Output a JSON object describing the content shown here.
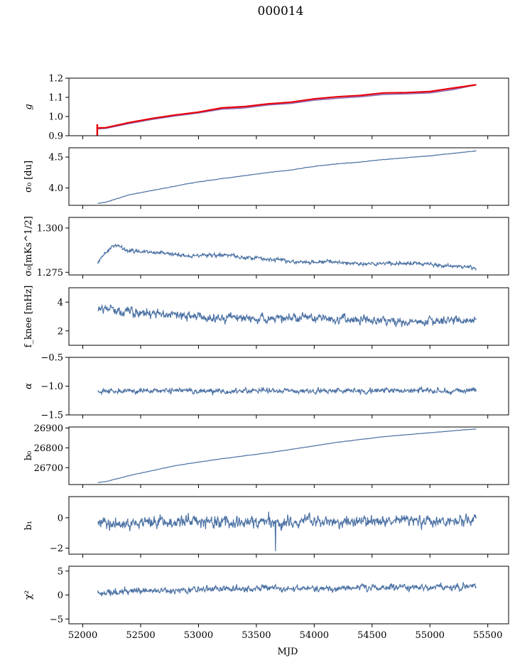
{
  "figure": {
    "title": "000014",
    "xlabel": "MJD"
  },
  "colors": {
    "series": "#4c72a4",
    "g_red": "#e8000b",
    "g_purple": "#8c6bb1",
    "axis": "#000000"
  },
  "chart_data": [
    {
      "type": "line",
      "key": "g",
      "ylabel": "g",
      "xlim": [
        51880,
        55680
      ],
      "ylim": [
        0.9,
        1.2
      ],
      "yticks": [
        0.9,
        1.0,
        1.1,
        1.2
      ],
      "ytick_labels": [
        "0.9",
        "1.0",
        "1.1",
        "1.2"
      ],
      "series": [
        {
          "color": "g_purple",
          "x": [
            52120,
            52200,
            52400,
            52600,
            52800,
            53000,
            53200,
            53400,
            53600,
            53800,
            54000,
            54200,
            54400,
            54600,
            54800,
            55000,
            55200,
            55400
          ],
          "y": [
            0.935,
            0.938,
            0.963,
            0.985,
            1.003,
            1.018,
            1.038,
            1.045,
            1.06,
            1.068,
            1.085,
            1.095,
            1.103,
            1.115,
            1.118,
            1.123,
            1.14,
            1.165
          ]
        },
        {
          "color": "g_red",
          "x": [
            52120,
            52200,
            52400,
            52600,
            52800,
            53000,
            53200,
            53400,
            53600,
            53800,
            54000,
            54200,
            54400,
            54600,
            54800,
            55000,
            55200,
            55400
          ],
          "y": [
            0.94,
            0.942,
            0.968,
            0.99,
            1.008,
            1.023,
            1.045,
            1.052,
            1.066,
            1.075,
            1.092,
            1.103,
            1.11,
            1.123,
            1.125,
            1.13,
            1.148,
            1.165
          ],
          "spike": {
            "x": 52125,
            "y0": 0.9,
            "y1": 0.96
          }
        }
      ]
    },
    {
      "type": "line",
      "key": "sigma0_du",
      "ylabel": "σ₀ [du]",
      "xlim": [
        51880,
        55680
      ],
      "ylim": [
        3.72,
        4.65
      ],
      "yticks": [
        4.0,
        4.5
      ],
      "ytick_labels": [
        "4.0",
        "4.5"
      ],
      "series": [
        {
          "color": "series",
          "x": [
            52130,
            52200,
            52300,
            52400,
            52600,
            52800,
            53000,
            53200,
            53400,
            53600,
            53800,
            54000,
            54200,
            54400,
            54600,
            54800,
            55000,
            55200,
            55400
          ],
          "y": [
            3.75,
            3.77,
            3.83,
            3.89,
            3.96,
            4.03,
            4.1,
            4.15,
            4.2,
            4.25,
            4.29,
            4.35,
            4.39,
            4.42,
            4.46,
            4.49,
            4.52,
            4.56,
            4.6
          ]
        }
      ],
      "noise": 0.004
    },
    {
      "type": "line",
      "key": "sigma0_mks",
      "ylabel": "σ₀[mKs^1/2]",
      "xlim": [
        51880,
        55680
      ],
      "ylim": [
        1.2735,
        1.306
      ],
      "yticks": [
        1.275,
        1.3
      ],
      "ytick_labels": [
        "1.275",
        "1.300"
      ],
      "series": [
        {
          "color": "series",
          "x": [
            52130,
            52180,
            52250,
            52300,
            52400,
            52500,
            52700,
            52900,
            53100,
            53300,
            53500,
            53700,
            53900,
            54100,
            54300,
            54500,
            54700,
            54900,
            55100,
            55300,
            55400
          ],
          "y": [
            1.28,
            1.285,
            1.289,
            1.29,
            1.287,
            1.287,
            1.286,
            1.284,
            1.285,
            1.284,
            1.283,
            1.282,
            1.281,
            1.281,
            1.28,
            1.28,
            1.28,
            1.28,
            1.279,
            1.278,
            1.277
          ]
        }
      ],
      "noise": 0.0012
    },
    {
      "type": "line",
      "key": "fknee",
      "ylabel": "f_knee [mHz]",
      "xlim": [
        51880,
        55680
      ],
      "ylim": [
        1.0,
        5.0
      ],
      "yticks": [
        2,
        4
      ],
      "ytick_labels": [
        "2",
        "4"
      ],
      "series": [
        {
          "color": "series",
          "x": [
            52130,
            52300,
            52600,
            53000,
            53400,
            53800,
            54200,
            54600,
            55000,
            55400
          ],
          "y": [
            3.6,
            3.4,
            3.2,
            3.0,
            2.9,
            2.9,
            2.8,
            2.75,
            2.7,
            2.7
          ]
        }
      ],
      "noise": 0.35
    },
    {
      "type": "line",
      "key": "alpha",
      "ylabel": "α",
      "xlim": [
        51880,
        55680
      ],
      "ylim": [
        -1.5,
        -0.5
      ],
      "yticks": [
        -1.5,
        -1.0,
        -0.5
      ],
      "ytick_labels": [
        "−1.5",
        "−1.0",
        "−0.5"
      ],
      "series": [
        {
          "color": "series",
          "x": [
            52130,
            55400
          ],
          "y": [
            -1.08,
            -1.08
          ]
        }
      ],
      "noise": 0.05
    },
    {
      "type": "line",
      "key": "b0",
      "ylabel": "b₀",
      "xlim": [
        51880,
        55680
      ],
      "ylim": [
        26615,
        26905
      ],
      "yticks": [
        26700,
        26800,
        26900
      ],
      "ytick_labels": [
        "26700",
        "26800",
        "26900"
      ],
      "series": [
        {
          "color": "series",
          "x": [
            52130,
            52200,
            52300,
            52400,
            52600,
            52800,
            53000,
            53200,
            53400,
            53600,
            53800,
            54000,
            54200,
            54400,
            54600,
            54800,
            55000,
            55200,
            55400
          ],
          "y": [
            26625,
            26630,
            26645,
            26660,
            26685,
            26710,
            26728,
            26745,
            26760,
            26775,
            26792,
            26810,
            26828,
            26842,
            26856,
            26866,
            26876,
            26886,
            26895
          ]
        }
      ],
      "noise": 0.8
    },
    {
      "type": "line",
      "key": "b1",
      "ylabel": "b₁",
      "xlim": [
        51880,
        55680
      ],
      "ylim": [
        -2.4,
        1.4
      ],
      "yticks": [
        -2,
        0
      ],
      "ytick_labels": [
        "−2",
        "0"
      ],
      "series": [
        {
          "color": "series",
          "x": [
            52130,
            55400
          ],
          "y": [
            -0.35,
            -0.15
          ]
        }
      ],
      "noise": 0.45,
      "dip": {
        "x": 53665,
        "y": -2.2
      }
    },
    {
      "type": "line",
      "key": "chi2",
      "ylabel": "χ²",
      "xlim": [
        51880,
        55680
      ],
      "ylim": [
        -6,
        6
      ],
      "yticks": [
        -5,
        0,
        5
      ],
      "ytick_labels": [
        "−5",
        "0",
        "5"
      ],
      "xticks": [
        52000,
        52500,
        53000,
        53500,
        54000,
        54500,
        55000,
        55500
      ],
      "xtick_labels": [
        "52000",
        "52500",
        "53000",
        "53500",
        "54000",
        "54500",
        "55000",
        "55500"
      ],
      "series": [
        {
          "color": "series",
          "x": [
            52130,
            52400,
            52800,
            53200,
            53600,
            54000,
            54400,
            54800,
            55200,
            55400
          ],
          "y": [
            0.4,
            0.8,
            1.0,
            1.2,
            1.3,
            1.4,
            1.5,
            1.6,
            1.7,
            1.8
          ]
        }
      ],
      "noise": 0.75
    }
  ]
}
